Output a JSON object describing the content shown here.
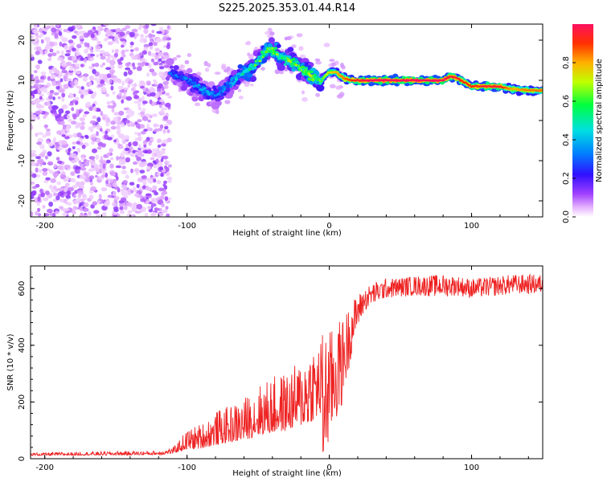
{
  "title": "S225.2025.353.01.44.R14",
  "colors": {
    "snr_line": "#ee2222",
    "axis": "#000000",
    "background": "#ffffff"
  },
  "chart_data": [
    {
      "type": "heatmap",
      "name": "spectrogram",
      "xlabel": "Height of straight line (km)",
      "ylabel": "Frequency (Hz)",
      "xlim": [
        -210,
        150
      ],
      "ylim": [
        -24,
        24
      ],
      "x_ticks": [
        -200,
        -100,
        0,
        100
      ],
      "y_ticks": [
        -20,
        -10,
        0,
        10,
        20
      ],
      "colorbar": {
        "label": "Normalized spectral amplitude",
        "range": [
          0.0,
          1.0
        ],
        "ticks": [
          0.0,
          0.2,
          0.4,
          0.6,
          0.8
        ]
      },
      "noise_region_x": [
        -210,
        -112
      ],
      "signal_track": {
        "x": [
          -112,
          -100,
          -90,
          -80,
          -70,
          -60,
          -55,
          -50,
          -42,
          -35,
          -28,
          -20,
          -12,
          -6,
          0,
          5,
          10,
          15,
          20,
          30,
          40,
          60,
          80,
          85,
          90,
          95,
          100,
          110,
          120,
          125,
          130,
          140,
          150
        ],
        "frequency": [
          12,
          10,
          8,
          6,
          9,
          12,
          13,
          15,
          18,
          16,
          15,
          13,
          11,
          10,
          12,
          12,
          10.5,
          10,
          10,
          10,
          10,
          10,
          10,
          11,
          10.5,
          9.5,
          8.5,
          8.5,
          8.5,
          8,
          7.8,
          7.5,
          7.5
        ],
        "peak_amplitude": [
          0.3,
          0.3,
          0.35,
          0.3,
          0.35,
          0.45,
          0.5,
          0.55,
          0.6,
          0.55,
          0.6,
          0.6,
          0.65,
          0.6,
          0.75,
          0.8,
          0.85,
          0.9,
          0.95,
          1.0,
          1.0,
          1.0,
          1.0,
          0.95,
          0.95,
          0.9,
          0.9,
          0.95,
          0.95,
          0.85,
          0.8,
          0.85,
          0.85
        ]
      }
    },
    {
      "type": "line",
      "name": "snr",
      "xlabel": "Height of straight line (km)",
      "ylabel": "SNR (10 * v/v)",
      "xlim": [
        -210,
        150
      ],
      "ylim": [
        0,
        680
      ],
      "x_ticks": [
        -200,
        -100,
        0,
        100
      ],
      "y_ticks": [
        0,
        200,
        400,
        600
      ],
      "series": [
        {
          "name": "SNR",
          "envelope_x": [
            -210,
            -120,
            -110,
            -100,
            -90,
            -80,
            -70,
            -60,
            -50,
            -40,
            -30,
            -20,
            -15,
            -10,
            -5,
            0,
            5,
            10,
            15,
            20,
            25,
            30,
            40,
            60,
            80,
            90,
            100,
            110,
            120,
            130,
            140,
            150
          ],
          "baseline": [
            12,
            15,
            20,
            40,
            45,
            60,
            70,
            80,
            100,
            110,
            120,
            140,
            150,
            170,
            180,
            250,
            300,
            350,
            450,
            520,
            560,
            580,
            600,
            610,
            610,
            610,
            600,
            605,
            610,
            615,
            615,
            615
          ],
          "amplitude": [
            10,
            15,
            20,
            70,
            90,
            120,
            130,
            150,
            180,
            200,
            210,
            230,
            300,
            280,
            280,
            200,
            180,
            150,
            100,
            60,
            40,
            40,
            35,
            35,
            40,
            35,
            35,
            35,
            35,
            35,
            35,
            35
          ]
        }
      ]
    }
  ]
}
